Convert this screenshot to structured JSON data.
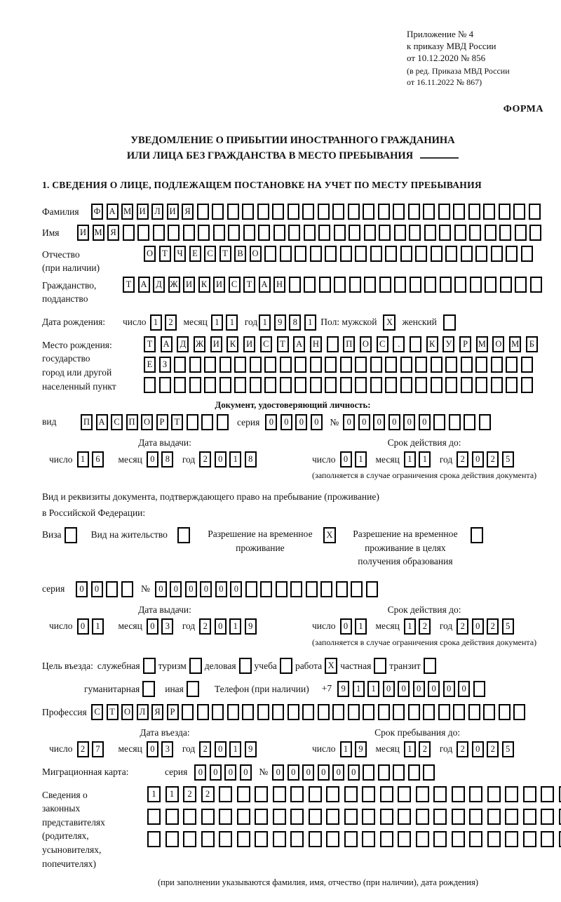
{
  "meta": {
    "appendix": [
      "Приложение № 4",
      "к приказу МВД России",
      "от 10.12.2020 № 856"
    ],
    "revision": [
      "(в ред. Приказа МВД России",
      "от 16.11.2022 № 867)"
    ],
    "form_label": "ФОРМА"
  },
  "title": {
    "line1": "УВЕДОМЛЕНИЕ О ПРИБЫТИИ ИНОСТРАННОГО ГРАЖДАНИНА",
    "line2": "ИЛИ ЛИЦА БЕЗ ГРАЖДАНСТВА В МЕСТО ПРЕБЫВАНИЯ"
  },
  "section1_heading": "1. СВЕДЕНИЯ О ЛИЦЕ, ПОДЛЕЖАЩЕМ ПОСТАНОВКЕ НА УЧЕТ ПО МЕСТУ ПРЕБЫВАНИЯ",
  "date_words": {
    "day": "число",
    "month": "месяц",
    "year": "год"
  },
  "surname": {
    "label": "Фамилия",
    "cells": {
      "text": "ФАМИЛИЯ",
      "count": 30
    }
  },
  "given_name": {
    "label": "Имя",
    "cells": {
      "text": "ИМЯ",
      "count": 31
    }
  },
  "patronymic": {
    "label": "Отчество",
    "label2": "(при наличии)",
    "cells": {
      "text": "ОТЧЕСТВО",
      "count": 26
    }
  },
  "citizenship": {
    "label": "Гражданство,",
    "label2": "подданство",
    "cells": {
      "text": "ТАДЖИКИСТАН",
      "count": 28
    }
  },
  "birth_date": {
    "label": "Дата рождения:",
    "day": "12",
    "month": "11",
    "year": "1981",
    "sex_label": "Пол: мужской",
    "male": "X",
    "female_label": "женский",
    "female": ""
  },
  "birth_place": {
    "label_lines": [
      "Место рождения:",
      "государство",
      "город или другой",
      "населенный пункт"
    ],
    "row1": {
      "text": "ТАДЖИКИСТАН ПОС. КУРМОМБ",
      "count": 24
    },
    "row2": {
      "text": "ЕЗ",
      "count": 26
    },
    "row3": {
      "text": "",
      "count": 26
    }
  },
  "identity_doc": {
    "heading": "Документ, удостоверяющий личность:",
    "kind_label": "вид",
    "kind": {
      "text": "ПАСПОРТ",
      "count": 10
    },
    "series_label": "серия",
    "series": {
      "text": "0000",
      "count": 4
    },
    "number_label": "№",
    "number": {
      "text": "000000",
      "count": 10
    },
    "issue": {
      "heading": "Дата выдачи:",
      "day": "16",
      "month": "08",
      "year": "2018"
    },
    "valid": {
      "heading": "Срок действия до:",
      "day": "01",
      "month": "11",
      "year": "2025"
    },
    "note": "(заполняется в случае ограничения срока действия документа)"
  },
  "residence_doc": {
    "intro1": "Вид и реквизиты документа, подтверждающего право на пребывание (проживание)",
    "intro2": "в Российской Федерации:",
    "options": [
      {
        "label": "Виза",
        "value": ""
      },
      {
        "label": "Вид на жительство",
        "value": ""
      },
      {
        "label": "Разрешение на временное проживание",
        "value": "X"
      },
      {
        "label": "Разрешение на временное проживание в целях получения образования",
        "value": ""
      }
    ],
    "series_label": "серия",
    "series": {
      "text": "00",
      "count": 4
    },
    "number_label": "№",
    "number": {
      "text": "000000",
      "count": 15
    },
    "issue": {
      "heading": "Дата выдачи:",
      "day": "01",
      "month": "03",
      "year": "2019"
    },
    "valid": {
      "heading": "Срок действия до:",
      "day": "01",
      "month": "12",
      "year": "2025"
    },
    "note": "(заполняется в случае ограничения срока действия документа)"
  },
  "visit_purpose": {
    "label": "Цель въезда:",
    "row1": [
      {
        "label": "служебная",
        "value": ""
      },
      {
        "label": "туризм",
        "value": ""
      },
      {
        "label": "деловая",
        "value": ""
      },
      {
        "label": "учеба",
        "value": ""
      },
      {
        "label": "работа",
        "value": "X"
      },
      {
        "label": "частная",
        "value": ""
      },
      {
        "label": "транзит",
        "value": ""
      }
    ],
    "row2": [
      {
        "label": "гуманитарная",
        "value": ""
      },
      {
        "label": "иная",
        "value": ""
      }
    ],
    "phone_label": "Телефон (при наличии)",
    "phone_prefix": "+7",
    "phone": {
      "text": "911000000",
      "count": 10
    }
  },
  "profession": {
    "label": "Профессия",
    "cells": {
      "text": "СТОЛЯР",
      "count": 29
    }
  },
  "entry": {
    "issue": {
      "heading": "Дата въезда:",
      "day": "27",
      "month": "03",
      "year": "2019"
    },
    "valid": {
      "heading": "Срок пребывания до:",
      "day": "19",
      "month": "12",
      "year": "2025"
    }
  },
  "migration_card": {
    "label": "Миграционная карта:",
    "series_label": "серия",
    "series": {
      "text": "0000",
      "count": 4
    },
    "number_label": "№",
    "number": {
      "text": "000000",
      "count": 11
    }
  },
  "representatives": {
    "label_lines": [
      "Сведения о",
      "законных",
      "представителях",
      "(родителях,",
      "усыновителях,",
      "попечителях)"
    ],
    "row1": {
      "text": "1122",
      "count": 24
    },
    "row2": {
      "text": "",
      "count": 24
    },
    "row3": {
      "text": "",
      "count": 24
    },
    "note": "(при заполнении указываются фамилия, имя, отчество (при наличии), дата рождения)"
  }
}
